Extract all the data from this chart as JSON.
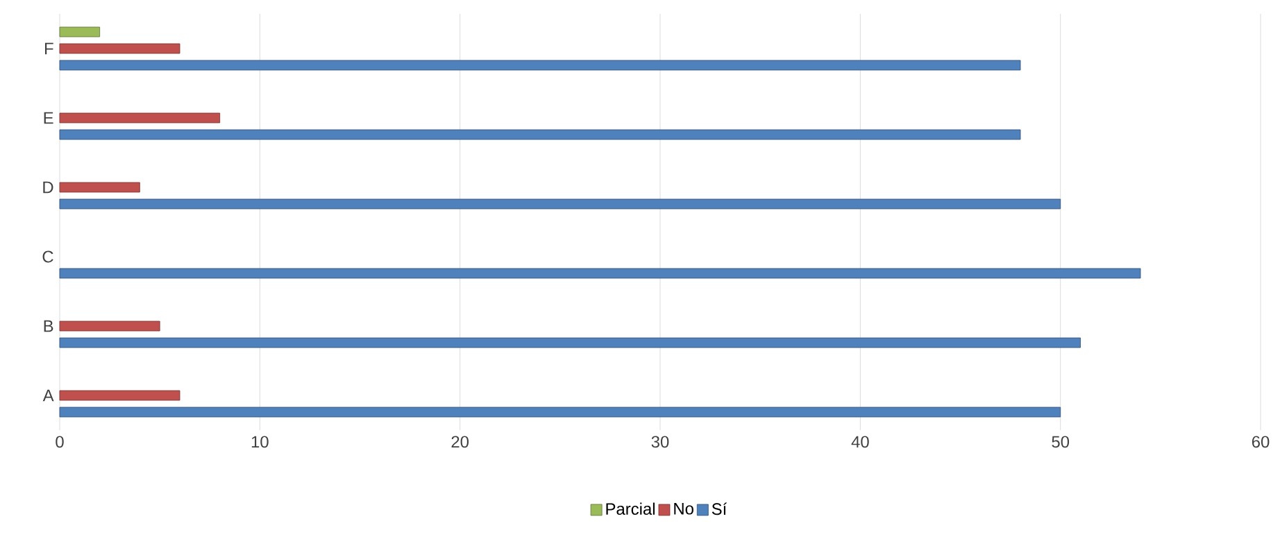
{
  "chart_data": {
    "type": "bar",
    "orientation": "horizontal",
    "categories": [
      "F",
      "E",
      "D",
      "C",
      "B",
      "A"
    ],
    "series": [
      {
        "name": "Parcial",
        "color": "#9bbb59",
        "values": [
          2,
          null,
          null,
          null,
          null,
          null
        ]
      },
      {
        "name": "No",
        "color": "#c0504d",
        "values": [
          6,
          8,
          4,
          null,
          5,
          6
        ]
      },
      {
        "name": "Sí",
        "color": "#4f81bd",
        "values": [
          48,
          48,
          50,
          54,
          51,
          50
        ]
      }
    ],
    "xlim": [
      0,
      60
    ],
    "xticks": [
      0,
      10,
      20,
      30,
      40,
      50,
      60
    ],
    "grid": "x",
    "legend": "bottom"
  }
}
